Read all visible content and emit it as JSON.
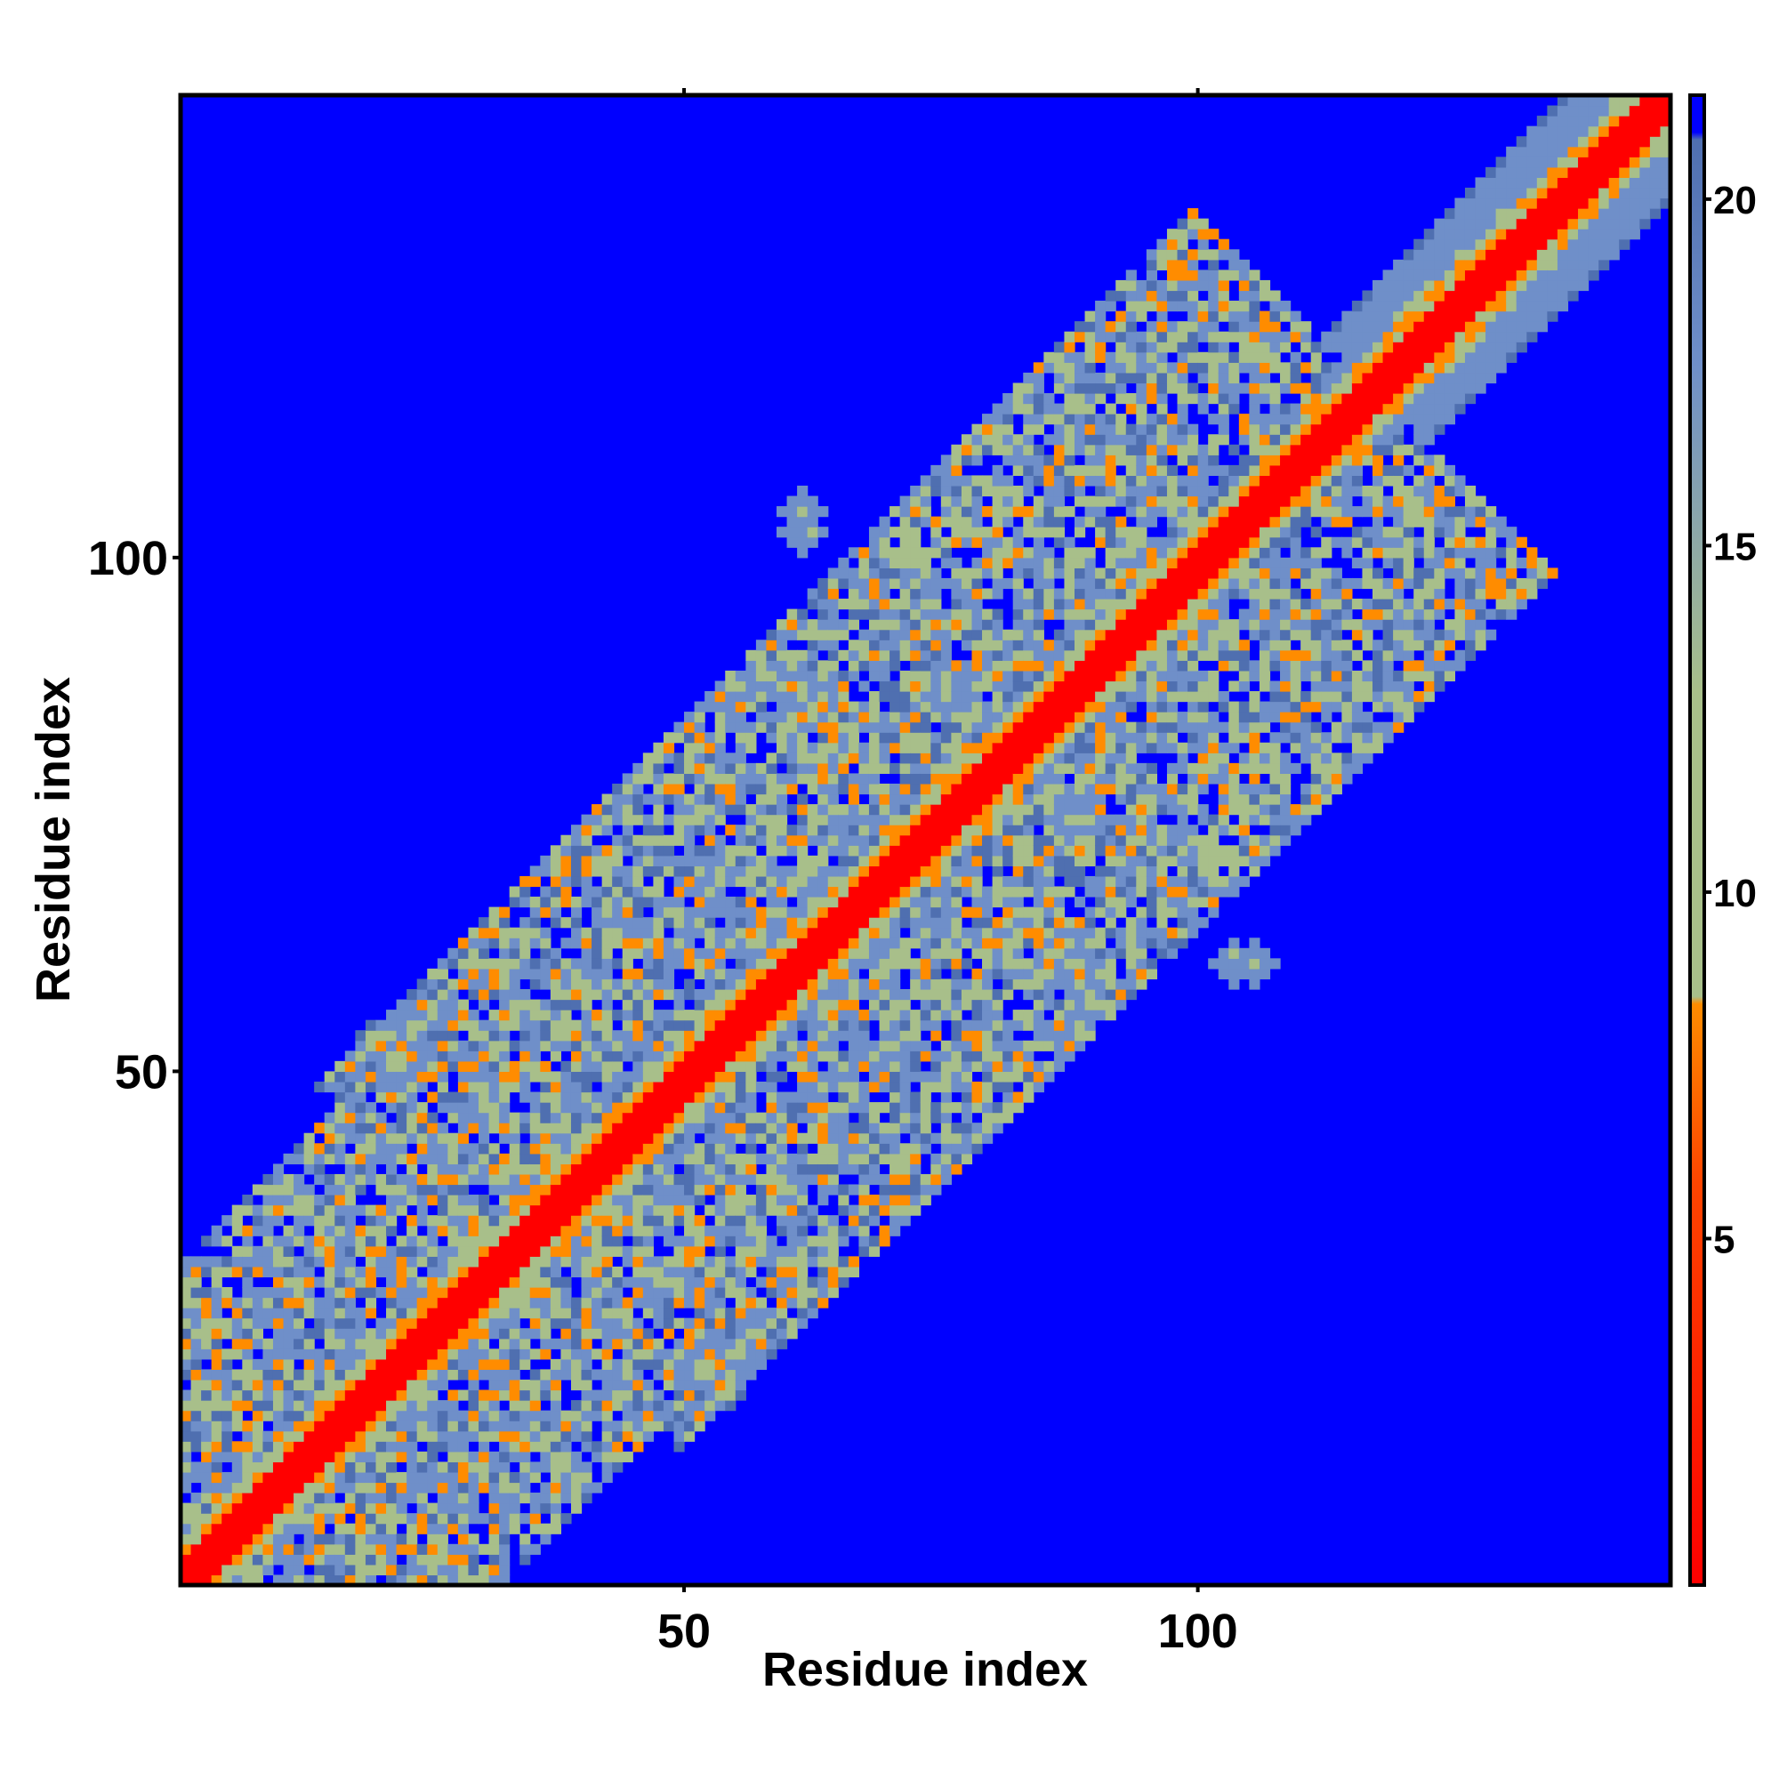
{
  "chart_data": {
    "type": "heatmap",
    "title": "",
    "xlabel": "Residue index",
    "ylabel": "Residue index",
    "n_residues": 145,
    "xlim": [
      1,
      145
    ],
    "ylim": [
      1,
      145
    ],
    "x_ticks": [
      50,
      100
    ],
    "y_ticks": [
      50,
      100
    ],
    "x_tick_labels": [
      "50",
      "100"
    ],
    "y_tick_labels": [
      "50",
      "100"
    ],
    "grid": false,
    "legend": "right colorbar",
    "colorbar": {
      "range": [
        0,
        21.5
      ],
      "ticks": [
        5,
        10,
        15,
        20
      ],
      "tick_labels": [
        "5",
        "10",
        "15",
        "20"
      ],
      "cutoff": 21,
      "colors": {
        "near": "#ff0000",
        "mid": "#ff8c00",
        "green": "#a8bf8a",
        "steel": "#6f8fc9",
        "far": "#0000ff"
      }
    },
    "clusters": [
      {
        "center": [
          14,
          14
        ],
        "radius": 20,
        "contact_density": 0.35,
        "mean_distance": 12
      },
      {
        "center": [
          23,
          23
        ],
        "radius": 13,
        "contact_density": 0.25,
        "mean_distance": 12
      },
      {
        "center": [
          53,
          53
        ],
        "radius": 22,
        "contact_density": 0.3,
        "mean_distance": 13
      },
      {
        "center": [
          67,
          67
        ],
        "radius": 14,
        "contact_density": 0.2,
        "mean_distance": 13
      },
      {
        "center": [
          95,
          95
        ],
        "radius": 22,
        "contact_density": 0.3,
        "mean_distance": 13
      },
      {
        "center": [
          104,
          104
        ],
        "radius": 12,
        "contact_density": 0.25,
        "mean_distance": 13
      }
    ],
    "islands": [
      {
        "center": [
          52,
          21
        ],
        "radius": 4
      },
      {
        "center": [
          22,
          52
        ],
        "radius": 4
      },
      {
        "center": [
          61,
          88
        ],
        "radius": 3
      },
      {
        "center": [
          88,
          61
        ],
        "radius": 3
      },
      {
        "center": [
          88,
          75
        ],
        "radius": 3
      },
      {
        "center": [
          75,
          88
        ],
        "radius": 3
      },
      {
        "center": [
          103,
          61
        ],
        "radius": 2
      },
      {
        "center": [
          61,
          103
        ],
        "radius": 2
      },
      {
        "center": [
          61,
          105
        ],
        "radius": 2
      },
      {
        "center": [
          105,
          61
        ],
        "radius": 2
      }
    ],
    "diagonal_band": {
      "near_width": 2,
      "helix_width": 4,
      "fade_width": 10
    }
  }
}
